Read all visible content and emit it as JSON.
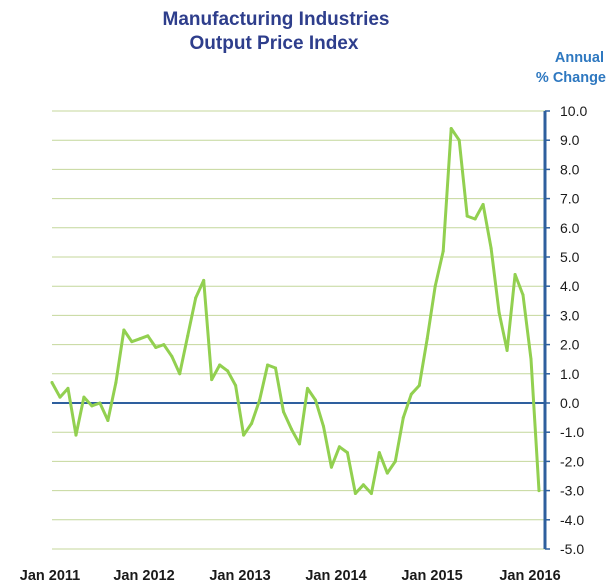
{
  "chart_data": {
    "type": "line",
    "title": [
      "Manufacturing Industries",
      "Output Price Index"
    ],
    "ylabel": [
      "Annual",
      "% Change"
    ],
    "ylim": [
      -5.0,
      10.0
    ],
    "y_ticks": [
      "10.0",
      "9.0",
      "8.0",
      "7.0",
      "6.0",
      "5.0",
      "4.0",
      "3.0",
      "2.0",
      "1.0",
      "0.0",
      "-1.0",
      "-2.0",
      "-3.0",
      "-4.0",
      "-5.0"
    ],
    "x_ticks": [
      "Jan 2011",
      "Jan 2012",
      "Jan 2013",
      "Jan 2014",
      "Jan 2015",
      "Jan 2016"
    ],
    "y_axis_side": "right",
    "grid": true,
    "colors": {
      "line": "#92d050",
      "grid": "#c4d79b",
      "axis": "#2e5f9e",
      "zero_line": "#2e5f9e"
    },
    "series": [
      {
        "x": [
          "2011-01",
          "2011-02",
          "2011-03",
          "2011-04",
          "2011-05",
          "2011-06",
          "2011-07",
          "2011-08",
          "2011-09",
          "2011-10",
          "2011-11",
          "2011-12",
          "2012-01",
          "2012-02",
          "2012-03",
          "2012-04",
          "2012-05",
          "2012-06",
          "2012-07",
          "2012-08",
          "2012-09",
          "2012-10",
          "2012-11",
          "2012-12",
          "2013-01",
          "2013-02",
          "2013-03",
          "2013-04",
          "2013-05",
          "2013-06",
          "2013-07",
          "2013-08",
          "2013-09",
          "2013-10",
          "2013-11",
          "2013-12",
          "2014-01",
          "2014-02",
          "2014-03",
          "2014-04",
          "2014-05",
          "2014-06",
          "2014-07",
          "2014-08",
          "2014-09",
          "2014-10",
          "2014-11",
          "2014-12",
          "2015-01",
          "2015-02",
          "2015-03",
          "2015-04",
          "2015-05",
          "2015-06",
          "2015-07",
          "2015-08",
          "2015-09",
          "2015-10",
          "2015-11",
          "2015-12",
          "2016-01",
          "2016-02"
        ],
        "values": [
          0.7,
          0.2,
          0.5,
          -1.1,
          0.2,
          -0.1,
          0.0,
          -0.6,
          0.7,
          2.5,
          2.1,
          2.2,
          2.3,
          1.9,
          2.0,
          1.6,
          1.0,
          2.3,
          3.6,
          4.2,
          0.8,
          1.3,
          1.1,
          0.6,
          -1.1,
          -0.7,
          0.1,
          1.3,
          1.2,
          -0.3,
          -0.9,
          -1.4,
          0.5,
          0.1,
          -0.8,
          -2.2,
          -1.5,
          -1.7,
          -3.1,
          -2.8,
          -3.1,
          -1.7,
          -2.4,
          -2.0,
          -0.5,
          0.3,
          0.6,
          2.2,
          4.0,
          5.2,
          9.4,
          9.0,
          6.4,
          6.3,
          6.8,
          5.3,
          3.1,
          1.8,
          4.4,
          3.7,
          1.5,
          -3.0
        ]
      }
    ]
  }
}
